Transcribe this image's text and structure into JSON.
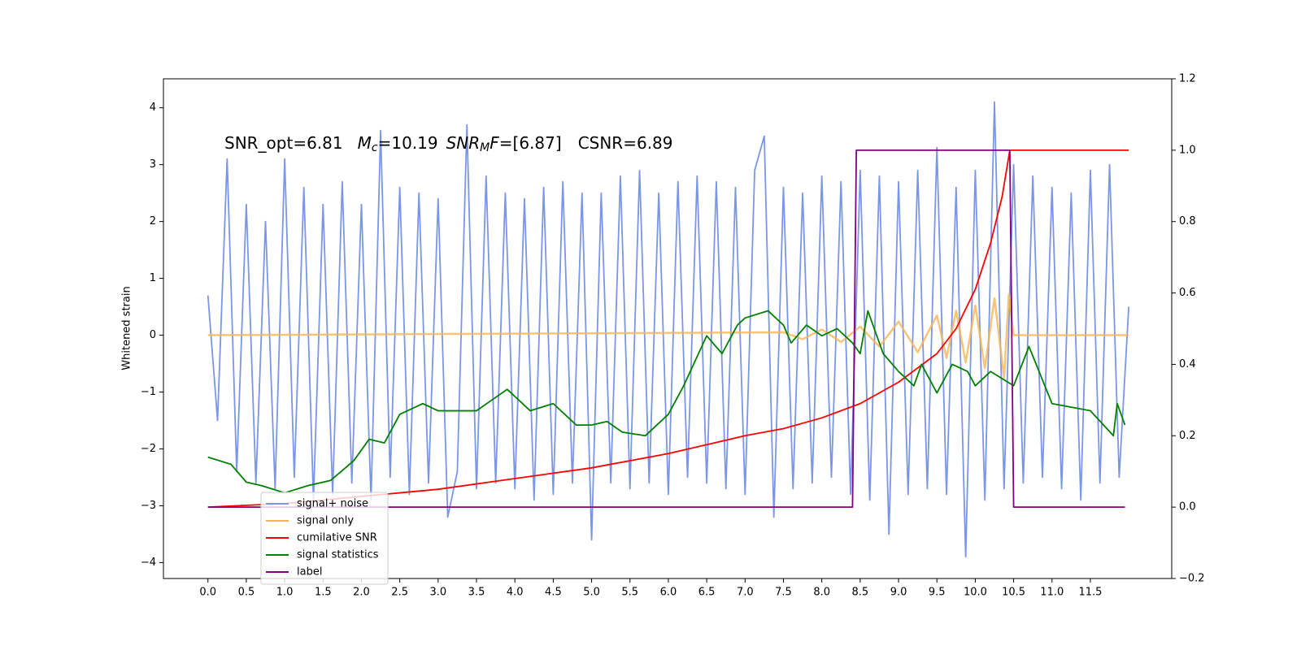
{
  "chart_data": {
    "type": "line",
    "y_label": "Whitened strain",
    "annotation": {
      "snr_opt": "SNR_opt=6.81",
      "mc_symbol": "M",
      "mc_sub": "c",
      "mc_value": "=10.19",
      "snr_mf_symbol": "SNR",
      "snr_mf_sub": "M",
      "snr_mf_tail": "F",
      "snr_mf_value": "=[6.87]",
      "csnr": "CSNR=6.89"
    },
    "xlim": [
      -0.58,
      12.56
    ],
    "ylim": [
      -4.28,
      4.51
    ],
    "y2lim": [
      -0.2,
      1.2
    ],
    "xticks": [
      {
        "value": 0,
        "label": "0.0"
      },
      0.5,
      {
        "value": 1,
        "label": "1.0"
      },
      1.5,
      {
        "value": 2,
        "label": "2.0"
      },
      2.5,
      {
        "value": 3,
        "label": "3.0"
      },
      3.5,
      {
        "value": 4,
        "label": "4.0"
      },
      4.5,
      {
        "value": 5,
        "label": "5.0"
      },
      5.5,
      {
        "value": 6,
        "label": "6.0"
      },
      6.5,
      {
        "value": 7,
        "label": "7.0"
      },
      7.5,
      {
        "value": 8,
        "label": "8.0"
      },
      8.5,
      {
        "value": 9,
        "label": "9.0"
      },
      9.5,
      {
        "value": 10,
        "label": "10.0"
      },
      10.5,
      {
        "value": 11,
        "label": "11.0"
      },
      11.5
    ],
    "yticks": [
      {
        "value": -4,
        "label": "−4"
      },
      {
        "value": -3,
        "label": "−3"
      },
      {
        "value": -2,
        "label": "−2"
      },
      {
        "value": -1,
        "label": "−1"
      },
      0,
      1,
      2,
      3,
      4
    ],
    "y2ticks": [
      {
        "value": -0.2,
        "label": "−0.2"
      },
      {
        "value": 0,
        "label": "0.0"
      },
      0.2,
      0.4,
      0.6,
      0.8,
      {
        "value": 1,
        "label": "1.0"
      },
      1.2
    ],
    "legend": "lower left",
    "series": [
      {
        "name": "signal+ noise",
        "color": "#7b96e8",
        "x": [
          0,
          0.125,
          0.25,
          0.375,
          0.5,
          0.625,
          0.75,
          0.875,
          1,
          1.125,
          1.25,
          1.375,
          1.5,
          1.625,
          1.75,
          1.875,
          2,
          2.125,
          2.25,
          2.375,
          2.5,
          2.625,
          2.75,
          2.875,
          3,
          3.125,
          3.25,
          3.375,
          3.5,
          3.625,
          3.75,
          3.875,
          4,
          4.125,
          4.25,
          4.375,
          4.5,
          4.625,
          4.75,
          4.875,
          5,
          5.125,
          5.25,
          5.375,
          5.5,
          5.625,
          5.75,
          5.875,
          6,
          6.125,
          6.25,
          6.375,
          6.5,
          6.625,
          6.75,
          6.875,
          7,
          7.125,
          7.25,
          7.375,
          7.5,
          7.625,
          7.75,
          7.875,
          8,
          8.125,
          8.25,
          8.375,
          8.5,
          8.625,
          8.75,
          8.875,
          9,
          9.125,
          9.25,
          9.375,
          9.5,
          9.625,
          9.75,
          9.875,
          10,
          10.125,
          10.25,
          10.375,
          10.5,
          10.625,
          10.75,
          10.875,
          11,
          11.125,
          11.25,
          11.375,
          11.5,
          11.625,
          11.75,
          11.875,
          12
        ],
        "values": [
          0.7,
          -1.5,
          3.1,
          -2.4,
          2.3,
          -2.6,
          2.0,
          -2.7,
          3.1,
          -2.5,
          2.6,
          -2.9,
          2.3,
          -2.8,
          2.7,
          -2.6,
          2.3,
          -2.9,
          3.6,
          -2.5,
          2.6,
          -2.8,
          2.5,
          -2.6,
          2.4,
          -3.2,
          -2.4,
          3.7,
          -2.7,
          2.8,
          -2.6,
          2.5,
          -2.7,
          2.4,
          -2.9,
          2.6,
          -2.8,
          2.7,
          -2.6,
          2.5,
          -3.6,
          2.5,
          -2.6,
          2.8,
          -2.7,
          2.9,
          -2.6,
          2.5,
          -2.8,
          2.7,
          -2.5,
          2.8,
          -2.6,
          2.7,
          -2.7,
          2.6,
          -2.8,
          2.9,
          3.5,
          -3.2,
          2.6,
          -2.7,
          2.5,
          -2.6,
          2.8,
          -2.5,
          2.7,
          -2.8,
          2.9,
          -2.9,
          2.8,
          -3.5,
          2.7,
          -2.8,
          2.9,
          -2.7,
          3.3,
          -2.8,
          2.6,
          -3.9,
          2.9,
          -2.9,
          4.1,
          -2.7,
          3.0,
          -2.6,
          2.8,
          -2.5,
          2.6,
          -2.7,
          2.5,
          -2.9,
          2.9,
          -2.6,
          3.0,
          -2.5,
          0.5
        ]
      },
      {
        "name": "signal only",
        "color": "#f5b556",
        "x": [
          0,
          7.5,
          7.75,
          8,
          8.25,
          8.5,
          8.75,
          9,
          9.25,
          9.5,
          9.625,
          9.75,
          9.875,
          10,
          10.125,
          10.25,
          10.375,
          10.4375,
          10.5,
          12
        ],
        "values": [
          0,
          0.05,
          -0.07,
          0.1,
          -0.12,
          0.15,
          -0.2,
          0.24,
          -0.3,
          0.35,
          -0.4,
          0.43,
          -0.48,
          0.52,
          -0.58,
          0.65,
          -0.75,
          0.72,
          0,
          0
        ]
      },
      {
        "name": "cumilative SNR",
        "color": "#ff0000",
        "axis": "y2",
        "x": [
          0,
          1,
          2,
          3,
          4,
          5,
          6,
          7,
          7.5,
          8,
          8.5,
          9,
          9.5,
          9.75,
          10,
          10.2,
          10.35,
          10.45,
          12
        ],
        "values": [
          0,
          0.01,
          0.03,
          0.05,
          0.08,
          0.11,
          0.15,
          0.2,
          0.22,
          0.25,
          0.29,
          0.35,
          0.43,
          0.5,
          0.61,
          0.74,
          0.87,
          1.0,
          1.0
        ]
      },
      {
        "name": "signal statistics",
        "color": "#008000",
        "axis": "y2",
        "x": [
          0,
          0.3,
          0.5,
          0.7,
          1.0,
          1.3,
          1.6,
          1.9,
          2.1,
          2.3,
          2.5,
          2.8,
          3.0,
          3.5,
          3.9,
          4.2,
          4.5,
          4.8,
          5.0,
          5.2,
          5.4,
          5.7,
          6.0,
          6.2,
          6.5,
          6.7,
          6.9,
          7.0,
          7.3,
          7.5,
          7.6,
          7.8,
          8.0,
          8.2,
          8.4,
          8.5,
          8.6,
          8.8,
          9.0,
          9.2,
          9.3,
          9.5,
          9.7,
          9.9,
          10.0,
          10.2,
          10.5,
          10.7,
          11.0,
          11.5,
          11.8,
          11.85,
          11.95
        ],
        "values": [
          0.14,
          0.12,
          0.07,
          0.06,
          0.04,
          0.06,
          0.075,
          0.13,
          0.19,
          0.18,
          0.26,
          0.29,
          0.27,
          0.27,
          0.33,
          0.27,
          0.29,
          0.23,
          0.23,
          0.24,
          0.21,
          0.2,
          0.26,
          0.34,
          0.48,
          0.43,
          0.51,
          0.53,
          0.55,
          0.51,
          0.46,
          0.51,
          0.48,
          0.5,
          0.46,
          0.43,
          0.55,
          0.43,
          0.38,
          0.34,
          0.4,
          0.32,
          0.4,
          0.38,
          0.34,
          0.38,
          0.34,
          0.45,
          0.29,
          0.27,
          0.2,
          0.29,
          0.23
        ]
      },
      {
        "name": "label",
        "color": "#800080",
        "axis": "y2",
        "x": [
          0,
          8.4,
          8.45,
          10.45,
          10.5,
          11.95
        ],
        "values": [
          0,
          0,
          1,
          1,
          0,
          0
        ]
      }
    ]
  }
}
